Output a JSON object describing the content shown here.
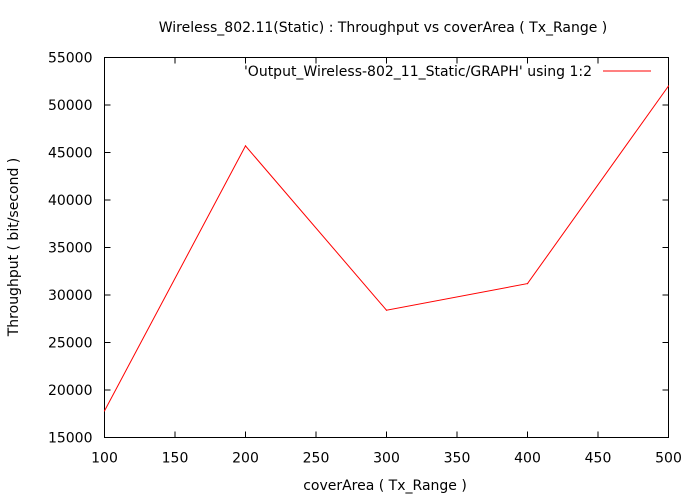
{
  "chart_data": {
    "type": "line",
    "title": "Wireless_802.11(Static) : Throughput vs coverArea ( Tx_Range )",
    "xlabel": "coverArea ( Tx_Range )",
    "ylabel": "Throughput ( bit/second )",
    "xlim": [
      100,
      500
    ],
    "ylim": [
      15000,
      55000
    ],
    "x_ticks": [
      "100",
      "150",
      "200",
      "250",
      "300",
      "350",
      "400",
      "450",
      "500"
    ],
    "y_ticks": [
      "15000",
      "20000",
      "25000",
      "30000",
      "35000",
      "40000",
      "45000",
      "50000",
      "55000"
    ],
    "grid": false,
    "legend_position": "top-right",
    "series": [
      {
        "name": "'Output_Wireless-802_11_Static/GRAPH' using 1:2",
        "color": "#ff0000",
        "x": [
          100,
          200,
          300,
          400,
          500
        ],
        "y": [
          17800,
          45700,
          28400,
          31200,
          52000
        ]
      }
    ]
  }
}
